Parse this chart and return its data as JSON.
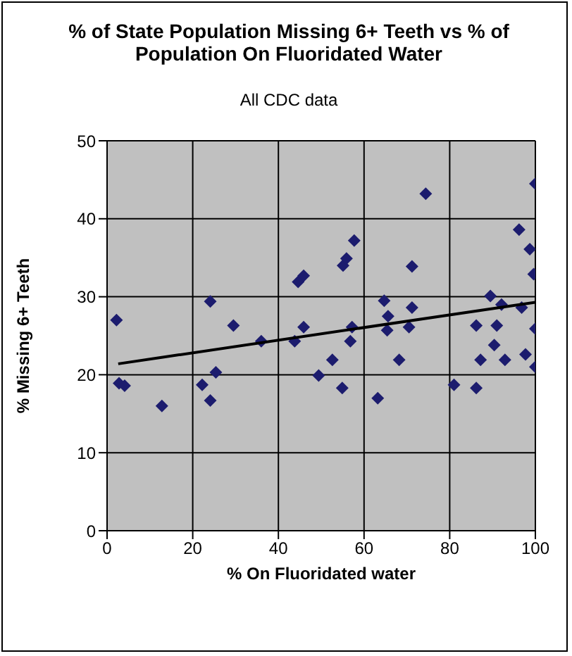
{
  "chart_data": {
    "type": "scatter",
    "title": "% of State Population Missing 6+ Teeth vs % of Population On Fluoridated Water",
    "subtitle": "All CDC data",
    "xlabel": "% On Fluoridated water",
    "ylabel": "% Missing 6+ Teeth",
    "xlim": [
      0,
      100
    ],
    "xticks": [
      0,
      20,
      40,
      60,
      80,
      100
    ],
    "ylim": [
      0,
      50
    ],
    "yticks": [
      0,
      10,
      20,
      30,
      40,
      50
    ],
    "grid": true,
    "marker": "diamond",
    "series": [
      {
        "color": "#1c1c6e",
        "x": [
          2.2,
          2.8,
          4.1,
          12.8,
          22.2,
          24.1,
          25.4,
          24.1,
          29.5,
          36,
          43.8,
          45.9,
          44.6,
          45.9,
          49.4,
          52.6,
          54.9,
          56.8,
          57.2,
          55.1,
          55.9,
          57.7,
          63.2,
          65.4,
          65.6,
          64.7,
          68.2,
          70.5,
          71.2,
          71.2,
          74.4,
          81,
          86.2,
          87.2,
          86.2,
          90.4,
          91,
          89.5,
          92.1,
          92.9,
          97.7,
          96.8,
          96.2,
          100,
          100,
          99.6,
          98.7,
          100
        ],
        "values": [
          27,
          18.9,
          18.6,
          16,
          18.7,
          16.7,
          20.3,
          29.4,
          26.3,
          24.3,
          24.3,
          26.1,
          31.9,
          32.7,
          19.9,
          21.9,
          18.3,
          24.3,
          26.1,
          34,
          34.9,
          37.2,
          17,
          25.7,
          27.5,
          29.5,
          21.9,
          26.1,
          28.6,
          33.9,
          43.2,
          18.7,
          18.3,
          21.9,
          26.3,
          23.8,
          26.3,
          30.1,
          29,
          21.9,
          22.6,
          28.6,
          38.6,
          21,
          25.9,
          32.9,
          36.1,
          44.5
        ]
      },
      {
        "type": "line",
        "color": "#000000",
        "marker": "none",
        "x": [
          2.6,
          100
        ],
        "values": [
          21.4,
          29.3
        ]
      }
    ]
  }
}
